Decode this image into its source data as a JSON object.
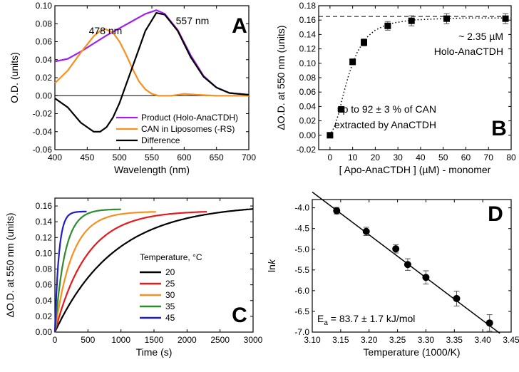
{
  "chart_data": [
    {
      "panel": "A",
      "type": "line",
      "xlabel": "Wavelength (nm)",
      "ylabel": "O.D. (units)",
      "xlim": [
        400,
        700
      ],
      "ylim": [
        -0.06,
        0.1
      ],
      "xticks": [
        400,
        450,
        500,
        550,
        600,
        650,
        700
      ],
      "yticks": [
        -0.06,
        -0.04,
        -0.02,
        0.0,
        0.02,
        0.04,
        0.06,
        0.08,
        0.1
      ],
      "annotations": [
        "478 nm",
        "557 nm"
      ],
      "series": [
        {
          "name": "Product (Holo-AnaCTDH)",
          "color": "#a020f0",
          "x": [
            400,
            420,
            440,
            460,
            480,
            500,
            520,
            540,
            557,
            570,
            590,
            610,
            630,
            650,
            670,
            700
          ],
          "y": [
            0.038,
            0.041,
            0.049,
            0.058,
            0.067,
            0.075,
            0.083,
            0.091,
            0.095,
            0.091,
            0.073,
            0.045,
            0.022,
            0.009,
            0.003,
            0.001
          ]
        },
        {
          "name": "CAN in Liposomes (-RS)",
          "color": "#f7901e",
          "x": [
            400,
            420,
            440,
            460,
            470,
            478,
            490,
            500,
            510,
            520,
            530,
            540,
            550,
            560,
            580,
            600,
            620,
            650,
            700
          ],
          "y": [
            0.014,
            0.028,
            0.048,
            0.066,
            0.072,
            0.074,
            0.07,
            0.06,
            0.046,
            0.03,
            0.016,
            0.007,
            0.002,
            0.0,
            0.0,
            0.002,
            0.001,
            0.0,
            0.0
          ]
        },
        {
          "name": "Difference",
          "color": "#000000",
          "x": [
            400,
            420,
            440,
            460,
            470,
            480,
            490,
            500,
            510,
            520,
            530,
            540,
            557,
            570,
            590,
            610,
            630,
            650,
            670,
            700
          ],
          "y": [
            -0.003,
            -0.013,
            -0.03,
            -0.04,
            -0.04,
            -0.035,
            -0.024,
            -0.008,
            0.012,
            0.032,
            0.052,
            0.072,
            0.092,
            0.09,
            0.072,
            0.043,
            0.021,
            0.009,
            0.003,
            0.001
          ]
        }
      ],
      "legend": [
        "Product (Holo-AnaCTDH)",
        "CAN in Liposomes (-RS)",
        "Difference"
      ],
      "legend_position": "bottom-right"
    },
    {
      "panel": "B",
      "type": "scatter",
      "xlabel": "[ Apo-AnaCTDH ] (µM) - monomer",
      "ylabel": "ΔO.D. at 550 nm (units)",
      "xlim": [
        -5,
        80
      ],
      "ylim": [
        -0.02,
        0.18
      ],
      "xticks": [
        0,
        10,
        20,
        30,
        40,
        50,
        60,
        70,
        80
      ],
      "yticks": [
        -0.02,
        0.0,
        0.02,
        0.04,
        0.06,
        0.08,
        0.1,
        0.12,
        0.14,
        0.16,
        0.18
      ],
      "asymptote": 0.165,
      "annotations": [
        "~ 2.35 µM",
        "Holo-AnaCTDH",
        "up to 92 ± 3 % of CAN",
        "extracted by AnaCTDH"
      ],
      "points": {
        "x": [
          0,
          5,
          10,
          15,
          25.5,
          36,
          51.5,
          77.5
        ],
        "y": [
          0.0,
          0.036,
          0.102,
          0.129,
          0.152,
          0.159,
          0.162,
          0.162
        ],
        "err": [
          0.0,
          0.0,
          0.004,
          0.005,
          0.006,
          0.007,
          0.007,
          0.007
        ]
      },
      "fit": {
        "x": [
          0,
          2,
          4,
          6,
          8,
          10,
          12,
          14,
          16,
          18,
          20,
          24,
          28,
          32,
          36,
          42,
          50,
          60,
          70,
          80
        ],
        "y": [
          0.0,
          0.012,
          0.032,
          0.058,
          0.081,
          0.1,
          0.115,
          0.126,
          0.135,
          0.141,
          0.146,
          0.152,
          0.156,
          0.158,
          0.16,
          0.161,
          0.162,
          0.163,
          0.163,
          0.163
        ]
      }
    },
    {
      "panel": "C",
      "type": "line",
      "xlabel": "Time (s)",
      "ylabel": "ΔO.D. at 550 nm (units)",
      "xlim": [
        0,
        3000
      ],
      "ylim": [
        0.0,
        0.17
      ],
      "xticks": [
        0,
        500,
        1000,
        1500,
        2000,
        2500,
        3000
      ],
      "yticks": [
        0.0,
        0.02,
        0.04,
        0.06,
        0.08,
        0.1,
        0.12,
        0.14,
        0.16
      ],
      "legend_title": "Temperature, °C",
      "legend_position": "center",
      "series": [
        {
          "name": "20",
          "color": "#000000",
          "tau": 900,
          "amp": 0.162,
          "tmax": 3000
        },
        {
          "name": "25",
          "color": "#e41a1c",
          "tau": 480,
          "amp": 0.154,
          "tmax": 2300
        },
        {
          "name": "30",
          "color": "#f7901e",
          "tau": 260,
          "amp": 0.153,
          "tmax": 1530
        },
        {
          "name": "35",
          "color": "#2e8b2e",
          "tau": 150,
          "amp": 0.156,
          "tmax": 1000
        },
        {
          "name": "45",
          "color": "#1f1fbf",
          "tau": 60,
          "amp": 0.153,
          "tmax": 480
        }
      ]
    },
    {
      "panel": "D",
      "type": "scatter",
      "xlabel": "Temperature (1000/K)",
      "ylabel": "lnk",
      "xlim": [
        3.1,
        3.45
      ],
      "ylim": [
        -7.0,
        -3.8
      ],
      "xticks": [
        3.1,
        3.15,
        3.2,
        3.25,
        3.3,
        3.35,
        3.4,
        3.45
      ],
      "yticks": [
        -7.0,
        -6.5,
        -6.0,
        -5.5,
        -5.0,
        -4.5,
        -4.0
      ],
      "annotation": "E_a = 83.7 ± 1.7 kJ/mol",
      "points": {
        "x": [
          3.143,
          3.195,
          3.247,
          3.268,
          3.3,
          3.354,
          3.412
        ],
        "y": [
          -4.07,
          -4.57,
          -4.99,
          -5.37,
          -5.68,
          -6.19,
          -6.78
        ],
        "err": [
          0.08,
          0.1,
          0.1,
          0.14,
          0.16,
          0.18,
          0.2
        ]
      },
      "fit": {
        "x": [
          3.1,
          3.43
        ],
        "y": [
          -3.62,
          -7.03
        ]
      }
    }
  ]
}
